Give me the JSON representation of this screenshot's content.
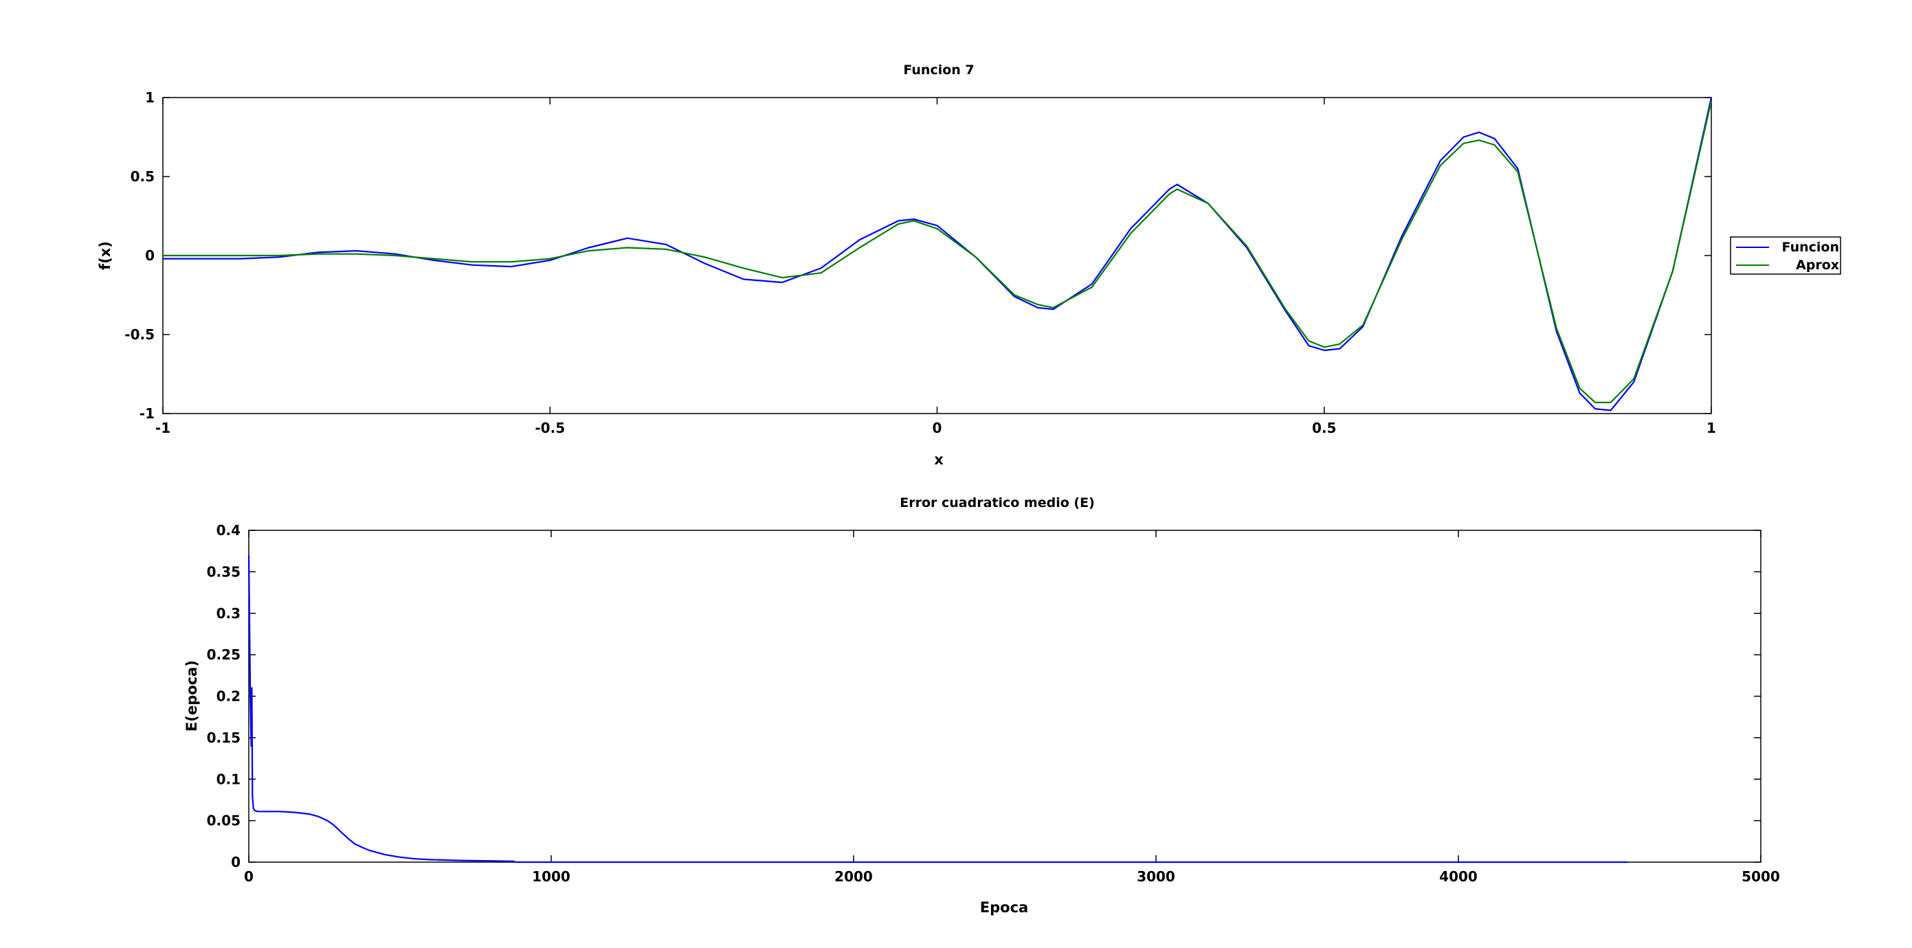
{
  "colors": {
    "funcion": "#0000ff",
    "aprox": "#007f00",
    "axes": "#000000",
    "background": "#ffffff"
  },
  "chart_data": [
    {
      "type": "line",
      "title": "Funcion 7",
      "xlabel": "x",
      "ylabel": "f(x)",
      "xlim": [
        -1,
        1
      ],
      "ylim": [
        -1,
        1
      ],
      "xticks": [
        -1,
        -0.5,
        0,
        0.5,
        1
      ],
      "xtick_labels": [
        "-1",
        "-0.5",
        "0",
        "0.5",
        "1"
      ],
      "yticks": [
        -1,
        -0.5,
        0,
        0.5,
        1
      ],
      "ytick_labels": [
        "-1",
        "-0.5",
        "0",
        "0.5",
        "1"
      ],
      "grid": false,
      "legend_position": "outside-right",
      "series": [
        {
          "name": "Funcion",
          "color": "#0000ff",
          "x": [
            -1,
            -0.9,
            -0.85,
            -0.8,
            -0.75,
            -0.7,
            -0.65,
            -0.6,
            -0.55,
            -0.5,
            -0.45,
            -0.4,
            -0.35,
            -0.3,
            -0.25,
            -0.2,
            -0.15,
            -0.1,
            -0.05,
            -0.03,
            0,
            0.05,
            0.1,
            0.13,
            0.15,
            0.2,
            0.25,
            0.3,
            0.31,
            0.35,
            0.4,
            0.45,
            0.48,
            0.5,
            0.52,
            0.55,
            0.6,
            0.65,
            0.68,
            0.7,
            0.72,
            0.75,
            0.8,
            0.83,
            0.85,
            0.87,
            0.9,
            0.95,
            1
          ],
          "y": [
            -0.02,
            -0.02,
            -0.01,
            0.02,
            0.03,
            0.01,
            -0.03,
            -0.06,
            -0.07,
            -0.03,
            0.05,
            0.11,
            0.07,
            -0.05,
            -0.15,
            -0.17,
            -0.08,
            0.1,
            0.22,
            0.23,
            0.19,
            -0.01,
            -0.26,
            -0.33,
            -0.34,
            -0.18,
            0.17,
            0.42,
            0.45,
            0.33,
            0.05,
            -0.35,
            -0.57,
            -0.6,
            -0.59,
            -0.45,
            0.12,
            0.6,
            0.75,
            0.78,
            0.74,
            0.55,
            -0.48,
            -0.87,
            -0.97,
            -0.98,
            -0.8,
            -0.1,
            1
          ]
        },
        {
          "name": "Aprox",
          "color": "#007f00",
          "x": [
            -1,
            -0.9,
            -0.85,
            -0.8,
            -0.75,
            -0.7,
            -0.65,
            -0.6,
            -0.55,
            -0.5,
            -0.45,
            -0.4,
            -0.35,
            -0.3,
            -0.25,
            -0.2,
            -0.15,
            -0.1,
            -0.05,
            -0.03,
            0,
            0.05,
            0.1,
            0.13,
            0.15,
            0.2,
            0.25,
            0.3,
            0.31,
            0.35,
            0.4,
            0.45,
            0.48,
            0.5,
            0.52,
            0.55,
            0.6,
            0.65,
            0.68,
            0.7,
            0.72,
            0.75,
            0.8,
            0.83,
            0.85,
            0.87,
            0.9,
            0.95,
            1
          ],
          "y": [
            0,
            0,
            0,
            0.01,
            0.01,
            0.0,
            -0.02,
            -0.04,
            -0.04,
            -0.02,
            0.03,
            0.05,
            0.04,
            -0.01,
            -0.08,
            -0.14,
            -0.11,
            0.05,
            0.2,
            0.22,
            0.17,
            -0.01,
            -0.25,
            -0.31,
            -0.33,
            -0.2,
            0.14,
            0.39,
            0.42,
            0.33,
            0.06,
            -0.34,
            -0.54,
            -0.58,
            -0.56,
            -0.44,
            0.1,
            0.57,
            0.71,
            0.73,
            0.7,
            0.53,
            -0.46,
            -0.84,
            -0.93,
            -0.93,
            -0.78,
            -0.1,
            0.98
          ]
        }
      ]
    },
    {
      "type": "line",
      "title": "Error cuadratico medio (E)",
      "xlabel": "Epoca",
      "ylabel": "E(epoca)",
      "xlim": [
        0,
        5000
      ],
      "ylim": [
        0,
        0.4
      ],
      "xticks": [
        0,
        1000,
        2000,
        3000,
        4000,
        5000
      ],
      "xtick_labels": [
        "0",
        "1000",
        "2000",
        "3000",
        "4000",
        "5000"
      ],
      "yticks": [
        0,
        0.05,
        0.1,
        0.15,
        0.2,
        0.25,
        0.3,
        0.35,
        0.4
      ],
      "ytick_labels": [
        "0",
        "0.05",
        "0.1",
        "0.15",
        "0.2",
        "0.25",
        "0.3",
        "0.35",
        "0.4"
      ],
      "grid": false,
      "series": [
        {
          "color": "#0000ff",
          "x": [
            0,
            5,
            8,
            10,
            12,
            15,
            20,
            30,
            50,
            100,
            150,
            200,
            230,
            260,
            280,
            300,
            330,
            350,
            380,
            400,
            450,
            500,
            550,
            600,
            700,
            800,
            880
          ],
          "y": [
            0.37,
            0.2,
            0.14,
            0.21,
            0.08,
            0.065,
            0.062,
            0.061,
            0.061,
            0.061,
            0.06,
            0.058,
            0.055,
            0.05,
            0.045,
            0.038,
            0.028,
            0.022,
            0.017,
            0.014,
            0.009,
            0.006,
            0.004,
            0.003,
            0.002,
            0.0015,
            0.001
          ]
        },
        {
          "color": "#0000ff",
          "x": [
            880,
            1000,
            2000,
            3000,
            4000,
            4560
          ],
          "y": [
            0,
            0,
            0,
            0,
            0,
            0
          ]
        }
      ]
    }
  ]
}
